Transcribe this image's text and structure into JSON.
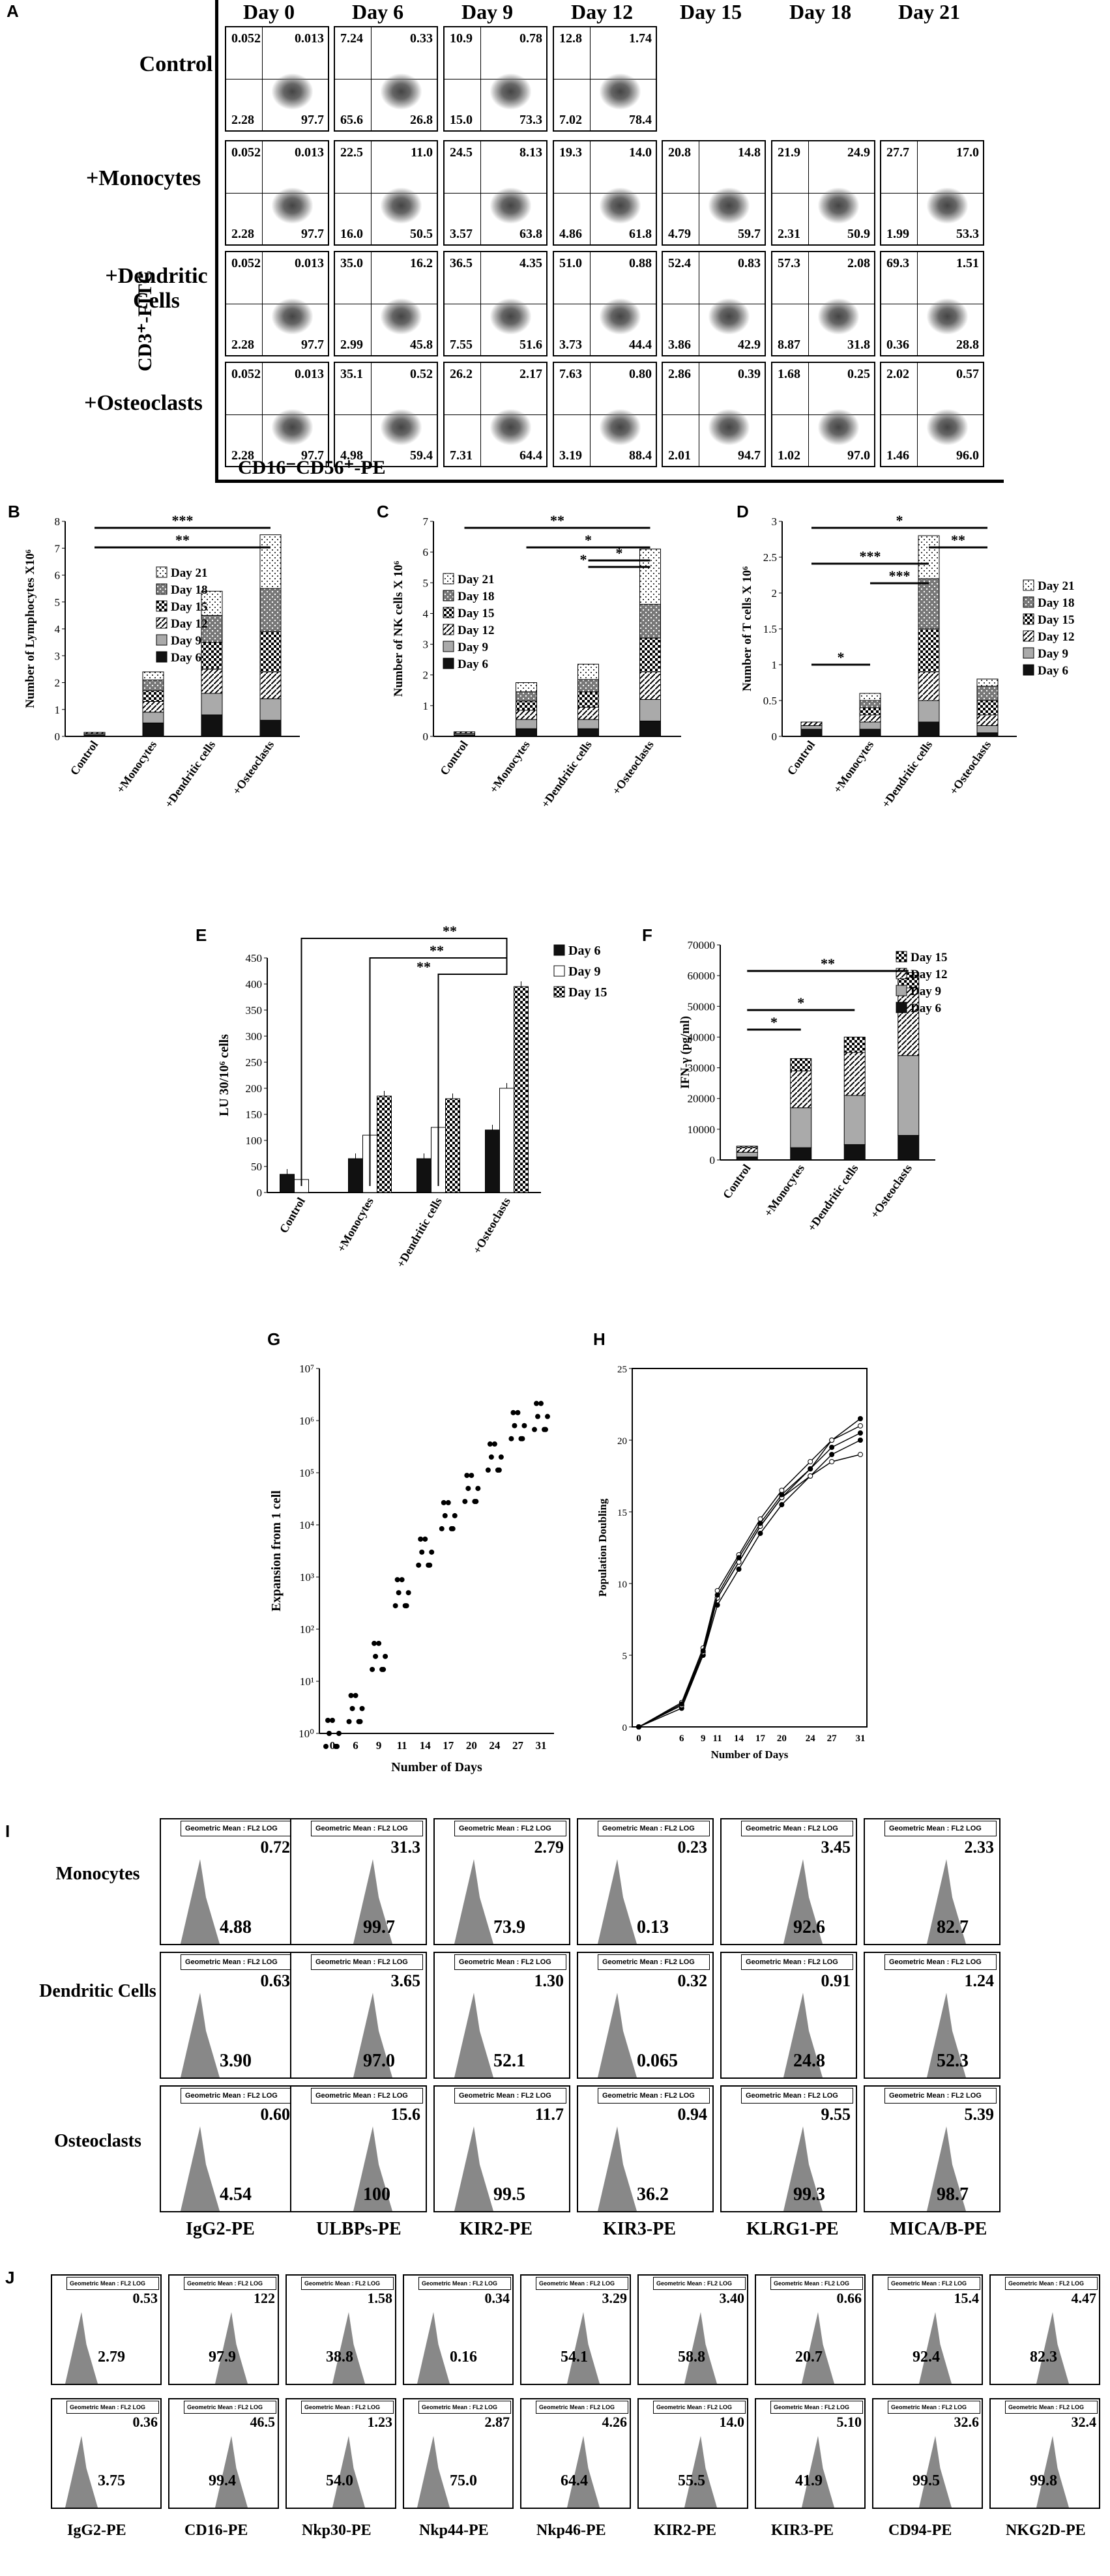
{
  "panels": {
    "A": "A",
    "B": "B",
    "C": "C",
    "D": "D",
    "E": "E",
    "F": "F",
    "G": "G",
    "H": "H",
    "I": "I",
    "J": "J"
  },
  "panelA": {
    "days": [
      "Day 0",
      "Day 6",
      "Day 9",
      "Day 12",
      "Day 15",
      "Day 18",
      "Day 21"
    ],
    "rows": [
      {
        "label": "Control",
        "plots": [
          [
            "0.052",
            "0.013",
            "2.28",
            "97.7"
          ],
          [
            "7.24",
            "0.33",
            "65.6",
            "26.8"
          ],
          [
            "10.9",
            "0.78",
            "15.0",
            "73.3"
          ],
          [
            "12.8",
            "1.74",
            "7.02",
            "78.4"
          ]
        ]
      },
      {
        "label": "+Monocytes",
        "plots": [
          [
            "0.052",
            "0.013",
            "2.28",
            "97.7"
          ],
          [
            "22.5",
            "11.0",
            "16.0",
            "50.5"
          ],
          [
            "24.5",
            "8.13",
            "3.57",
            "63.8"
          ],
          [
            "19.3",
            "14.0",
            "4.86",
            "61.8"
          ],
          [
            "20.8",
            "14.8",
            "4.79",
            "59.7"
          ],
          [
            "21.9",
            "24.9",
            "2.31",
            "50.9"
          ],
          [
            "27.7",
            "17.0",
            "1.99",
            "53.3"
          ]
        ]
      },
      {
        "label": "+Dendritic Cells",
        "plots": [
          [
            "0.052",
            "0.013",
            "2.28",
            "97.7"
          ],
          [
            "35.0",
            "16.2",
            "2.99",
            "45.8"
          ],
          [
            "36.5",
            "4.35",
            "7.55",
            "51.6"
          ],
          [
            "51.0",
            "0.88",
            "3.73",
            "44.4"
          ],
          [
            "52.4",
            "0.83",
            "3.86",
            "42.9"
          ],
          [
            "57.3",
            "2.08",
            "8.87",
            "31.8"
          ],
          [
            "69.3",
            "1.51",
            "0.36",
            "28.8"
          ]
        ]
      },
      {
        "label": "+Osteoclasts",
        "plots": [
          [
            "0.052",
            "0.013",
            "2.28",
            "97.7"
          ],
          [
            "35.1",
            "0.52",
            "4.98",
            "59.4"
          ],
          [
            "26.2",
            "2.17",
            "7.31",
            "64.4"
          ],
          [
            "7.63",
            "0.80",
            "3.19",
            "88.4"
          ],
          [
            "2.86",
            "0.39",
            "2.01",
            "94.7"
          ],
          [
            "1.68",
            "0.25",
            "1.02",
            "97.0"
          ],
          [
            "2.02",
            "0.57",
            "1.46",
            "96.0"
          ]
        ]
      }
    ],
    "yaxis": "CD3⁺-FITC",
    "xaxis": "CD16⁻CD56⁺-PE"
  },
  "chart_data": [
    {
      "type": "bar",
      "panel": "B",
      "ylabel": "Number of Lymphocytes X10⁶",
      "ylim": [
        0,
        8
      ],
      "categories": [
        "Control",
        "+Monocytes",
        "+Dendritic cells",
        "+Osteoclasts"
      ],
      "series": [
        {
          "name": "Day 6",
          "values": [
            0.05,
            0.5,
            0.8,
            0.6
          ]
        },
        {
          "name": "Day 9",
          "values": [
            0.05,
            0.4,
            0.8,
            0.8
          ]
        },
        {
          "name": "Day 12",
          "values": [
            0.05,
            0.4,
            0.9,
            1.0
          ]
        },
        {
          "name": "Day 15",
          "values": [
            0,
            0.4,
            1.0,
            1.5
          ]
        },
        {
          "name": "Day 18",
          "values": [
            0,
            0.4,
            1.0,
            1.6
          ]
        },
        {
          "name": "Day 21",
          "values": [
            0,
            0.3,
            0.9,
            2.0
          ]
        }
      ],
      "significance": [
        "***",
        "**"
      ]
    },
    {
      "type": "bar",
      "panel": "C",
      "ylabel": "Number of NK cells X 10⁶",
      "ylim": [
        0,
        7
      ],
      "categories": [
        "Control",
        "+Monocytes",
        "+Dendritic cells",
        "+Osteoclasts"
      ],
      "series": [
        {
          "name": "Day 6",
          "values": [
            0.05,
            0.25,
            0.25,
            0.5
          ]
        },
        {
          "name": "Day 9",
          "values": [
            0.05,
            0.3,
            0.3,
            0.7
          ]
        },
        {
          "name": "Day 12",
          "values": [
            0.05,
            0.3,
            0.4,
            0.9
          ]
        },
        {
          "name": "Day 15",
          "values": [
            0,
            0.3,
            0.5,
            1.1
          ]
        },
        {
          "name": "Day 18",
          "values": [
            0,
            0.3,
            0.4,
            1.1
          ]
        },
        {
          "name": "Day 21",
          "values": [
            0,
            0.3,
            0.5,
            1.8
          ]
        }
      ],
      "significance": [
        "**",
        "*",
        "*",
        "*"
      ]
    },
    {
      "type": "bar",
      "panel": "D",
      "ylabel": "Number of T cells X 10⁶",
      "ylim": [
        0,
        3
      ],
      "categories": [
        "Control",
        "+Monocytes",
        "+Dendritic cells",
        "+Osteoclasts"
      ],
      "series": [
        {
          "name": "Day 6",
          "values": [
            0.1,
            0.1,
            0.2,
            0.05
          ]
        },
        {
          "name": "Day 9",
          "values": [
            0.05,
            0.1,
            0.3,
            0.1
          ]
        },
        {
          "name": "Day 12",
          "values": [
            0.05,
            0.1,
            0.4,
            0.15
          ]
        },
        {
          "name": "Day 15",
          "values": [
            0,
            0.1,
            0.6,
            0.2
          ]
        },
        {
          "name": "Day 18",
          "values": [
            0,
            0.1,
            0.7,
            0.2
          ]
        },
        {
          "name": "Day 21",
          "values": [
            0,
            0.1,
            0.6,
            0.1
          ]
        }
      ],
      "significance": [
        "*",
        "***",
        "***",
        "*",
        "**"
      ]
    },
    {
      "type": "bar",
      "panel": "E",
      "ylabel": "LU 30/10⁶ cells",
      "ylim": [
        0,
        450
      ],
      "categories": [
        "Control",
        "+Monocytes",
        "+Dendritic cells",
        "+Osteoclasts"
      ],
      "series": [
        {
          "name": "Day 6",
          "values": [
            35,
            65,
            65,
            120
          ]
        },
        {
          "name": "Day 9",
          "values": [
            25,
            110,
            125,
            200
          ]
        },
        {
          "name": "Day 15",
          "values": [
            null,
            185,
            180,
            395
          ]
        }
      ],
      "significance": [
        "**",
        "**",
        "**"
      ]
    },
    {
      "type": "bar",
      "panel": "F",
      "ylabel": "IFN-γ (pg/ml)",
      "ylim": [
        0,
        70000
      ],
      "categories": [
        "Control",
        "+Monocytes",
        "+Dendritic cells",
        "+Osteoclasts"
      ],
      "series": [
        {
          "name": "Day 6",
          "values": [
            1000,
            4000,
            5000,
            8000
          ]
        },
        {
          "name": "Day 9",
          "values": [
            1500,
            13000,
            16000,
            26000
          ]
        },
        {
          "name": "Day 12",
          "values": [
            1500,
            12000,
            14000,
            22000
          ]
        },
        {
          "name": "Day 15",
          "values": [
            500,
            4000,
            5000,
            5000
          ]
        }
      ],
      "significance": [
        "*",
        "*",
        "**"
      ]
    },
    {
      "type": "scatter",
      "panel": "G",
      "xlabel": "Number of Days",
      "ylabel": "Expansion from 1 cell",
      "yscale": "log",
      "x": [
        0,
        6,
        9,
        11,
        14,
        17,
        20,
        24,
        27,
        31
      ],
      "y": [
        1,
        3,
        30,
        500,
        3000,
        15000,
        50000,
        200000,
        800000,
        1200000
      ],
      "yticks": [
        "10⁰",
        "10¹",
        "10²",
        "10³",
        "10⁴",
        "10⁵",
        "10⁶",
        "10⁷"
      ]
    },
    {
      "type": "line",
      "panel": "H",
      "xlabel": "Number of Days",
      "ylabel": "Population Doubling",
      "ylim": [
        0,
        25
      ],
      "x": [
        0,
        6,
        9,
        11,
        14,
        17,
        20,
        24,
        27,
        31
      ],
      "series": [
        {
          "values": [
            0,
            1.5,
            5,
            9,
            11.5,
            14,
            16,
            18,
            20,
            21.5
          ]
        },
        {
          "values": [
            0,
            1.7,
            5.5,
            9.5,
            12,
            14.5,
            16.5,
            18.5,
            20,
            21
          ]
        },
        {
          "values": [
            0,
            1.3,
            5,
            8.5,
            11,
            13.5,
            15.5,
            17.5,
            19,
            20
          ]
        },
        {
          "values": [
            0,
            1.5,
            5.2,
            9,
            11.5,
            14,
            16,
            17.5,
            18.5,
            19
          ]
        },
        {
          "values": [
            0,
            1.6,
            5.3,
            9.2,
            11.8,
            14.2,
            16.2,
            18,
            19.5,
            20.5
          ]
        }
      ],
      "yticks": [
        "0",
        "5",
        "10",
        "15",
        "20",
        "25"
      ]
    }
  ],
  "panelB_text": {
    "legend": [
      "Day 21",
      "Day 18",
      "Day 15",
      "Day 12",
      "Day 9",
      "Day 6"
    ],
    "yticks": [
      "0",
      "1",
      "2",
      "3",
      "4",
      "5",
      "6",
      "7",
      "8"
    ],
    "ylabel": "Number of Lymphocytes X10⁶",
    "cats": [
      "Control",
      "+Monocytes",
      "+Dendritic cells",
      "+Osteoclasts"
    ]
  },
  "panelC_text": {
    "legend": [
      "Day 21",
      "Day 18",
      "Day 15",
      "Day 12",
      "Day 9",
      "Day 6"
    ],
    "yticks": [
      "0",
      "1",
      "2",
      "3",
      "4",
      "5",
      "6",
      "7"
    ],
    "ylabel": "Number of NK cells X 10⁶",
    "cats": [
      "Control",
      "+Monocytes",
      "+Dendritic cells",
      "+Osteoclasts"
    ]
  },
  "panelD_text": {
    "legend": [
      "Day 21",
      "Day 18",
      "Day 15",
      "Day 12",
      "Day 9",
      "Day 6"
    ],
    "yticks": [
      "0",
      "0.5",
      "1",
      "1.5",
      "2",
      "2.5",
      "3"
    ],
    "ylabel": "Number of T cells X 10⁶",
    "cats": [
      "Control",
      "+Monocytes",
      "+Dendritic cells",
      "+Osteoclasts"
    ]
  },
  "panelE_text": {
    "legend": [
      "Day 6",
      "Day 9",
      "Day 15"
    ],
    "yticks": [
      "0",
      "50",
      "100",
      "150",
      "200",
      "250",
      "300",
      "350",
      "400",
      "450"
    ],
    "ylabel": "LU 30/10⁶ cells",
    "cats": [
      "Control",
      "+Monocytes",
      "+Dendritic cells",
      "+Osteoclasts"
    ]
  },
  "panelF_text": {
    "legend": [
      "Day 15",
      "Day 12",
      "Day 9",
      "Day 6"
    ],
    "yticks": [
      "0",
      "10000",
      "20000",
      "30000",
      "40000",
      "50000",
      "60000",
      "70000"
    ],
    "ylabel": "IFN-γ (pg/ml)",
    "cats": [
      "Control",
      "+Monocytes",
      "+Dendritic cells",
      "+Osteoclasts"
    ]
  },
  "panelG_text": {
    "xticks": [
      "0",
      "6",
      "9",
      "11",
      "14",
      "17",
      "20",
      "24",
      "27",
      "31"
    ],
    "xlabel": "Number of Days",
    "ylabel": "Expansion from 1 cell"
  },
  "panelH_text": {
    "xticks": [
      "0",
      "6",
      "9",
      "11",
      "14",
      "17",
      "20",
      "24",
      "27",
      "31"
    ],
    "xlabel": "Number of Days",
    "ylabel": "Population Doubling"
  },
  "panelI": {
    "gm_label": "Geometric Mean : FL2 LOG",
    "rows": [
      {
        "label": "Monocytes",
        "cells": [
          [
            "0.72",
            "4.88"
          ],
          [
            "31.3",
            "99.7"
          ],
          [
            "2.79",
            "73.9"
          ],
          [
            "0.23",
            "0.13"
          ],
          [
            "3.45",
            "92.6"
          ],
          [
            "2.33",
            "82.7"
          ]
        ]
      },
      {
        "label": "Dendritic Cells",
        "cells": [
          [
            "0.63",
            "3.90"
          ],
          [
            "3.65",
            "97.0"
          ],
          [
            "1.30",
            "52.1"
          ],
          [
            "0.32",
            "0.065"
          ],
          [
            "0.91",
            "24.8"
          ],
          [
            "1.24",
            "52.3"
          ]
        ]
      },
      {
        "label": "Osteoclasts",
        "cells": [
          [
            "0.60",
            "4.54"
          ],
          [
            "15.6",
            "100"
          ],
          [
            "11.7",
            "99.5"
          ],
          [
            "0.94",
            "36.2"
          ],
          [
            "9.55",
            "99.3"
          ],
          [
            "5.39",
            "98.7"
          ]
        ]
      }
    ],
    "cols": [
      "IgG2-PE",
      "ULBPs-PE",
      "KIR2-PE",
      "KIR3-PE",
      "KLRG1-PE",
      "MICA/B-PE"
    ]
  },
  "panelJ": {
    "gm_label": "Geometric Mean : FL2 LOG",
    "rows": [
      {
        "cells": [
          [
            "0.53",
            "2.79"
          ],
          [
            "122",
            "97.9"
          ],
          [
            "1.58",
            "38.8"
          ],
          [
            "0.34",
            "0.16"
          ],
          [
            "3.29",
            "54.1"
          ],
          [
            "3.40",
            "58.8"
          ],
          [
            "0.66",
            "20.7"
          ],
          [
            "15.4",
            "92.4"
          ],
          [
            "4.47",
            "82.3"
          ]
        ]
      },
      {
        "cells": [
          [
            "0.36",
            "3.75"
          ],
          [
            "46.5",
            "99.4"
          ],
          [
            "1.23",
            "54.0"
          ],
          [
            "2.87",
            "75.0"
          ],
          [
            "4.26",
            "64.4"
          ],
          [
            "14.0",
            "55.5"
          ],
          [
            "5.10",
            "41.9"
          ],
          [
            "32.6",
            "99.5"
          ],
          [
            "32.4",
            "99.8"
          ]
        ]
      }
    ],
    "cols": [
      "IgG2-PE",
      "CD16-PE",
      "Nkp30-PE",
      "Nkp44-PE",
      "Nkp46-PE",
      "KIR2-PE",
      "KIR3-PE",
      "CD94-PE",
      "NKG2D-PE"
    ]
  }
}
